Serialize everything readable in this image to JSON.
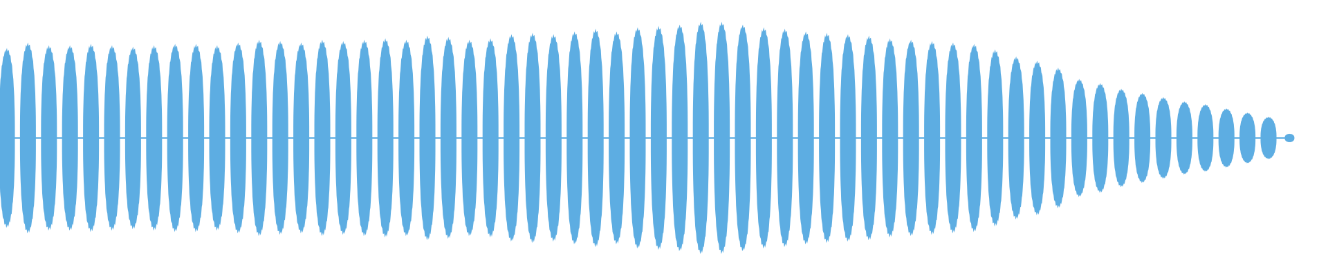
{
  "chart_data": {
    "type": "area",
    "title": "",
    "xlabel": "",
    "ylabel": "",
    "ylim": [
      -1,
      1
    ],
    "grid": false,
    "color": "#5dade2",
    "pulse_amplitudes": [
      0.64,
      0.68,
      0.66,
      0.66,
      0.67,
      0.66,
      0.65,
      0.66,
      0.67,
      0.67,
      0.66,
      0.68,
      0.7,
      0.69,
      0.68,
      0.7,
      0.69,
      0.7,
      0.71,
      0.7,
      0.73,
      0.72,
      0.7,
      0.71,
      0.74,
      0.75,
      0.74,
      0.76,
      0.78,
      0.76,
      0.79,
      0.8,
      0.81,
      0.83,
      0.83,
      0.81,
      0.79,
      0.78,
      0.76,
      0.75,
      0.74,
      0.73,
      0.71,
      0.7,
      0.69,
      0.68,
      0.67,
      0.63,
      0.58,
      0.55,
      0.5,
      0.42,
      0.39,
      0.35,
      0.32,
      0.29,
      0.26,
      0.24,
      0.21,
      0.18,
      0.15,
      0.03
    ]
  }
}
